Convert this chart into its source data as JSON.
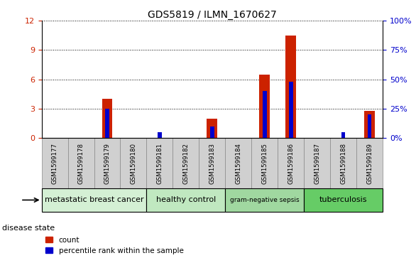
{
  "title": "GDS5819 / ILMN_1670627",
  "samples": [
    "GSM1599177",
    "GSM1599178",
    "GSM1599179",
    "GSM1599180",
    "GSM1599181",
    "GSM1599182",
    "GSM1599183",
    "GSM1599184",
    "GSM1599185",
    "GSM1599186",
    "GSM1599187",
    "GSM1599188",
    "GSM1599189"
  ],
  "counts": [
    0,
    0,
    4.0,
    0,
    0,
    0,
    2.0,
    0,
    6.5,
    10.5,
    0,
    0,
    2.8
  ],
  "percentile": [
    0,
    0,
    25,
    0,
    5,
    0,
    10,
    0,
    40,
    48,
    0,
    5,
    20
  ],
  "ylim_left": [
    0,
    12
  ],
  "ylim_right": [
    0,
    100
  ],
  "yticks_left": [
    0,
    3,
    6,
    9,
    12
  ],
  "yticks_right": [
    0,
    25,
    50,
    75,
    100
  ],
  "yticklabels_right": [
    "0%",
    "25%",
    "50%",
    "75%",
    "100%"
  ],
  "disease_groups": [
    {
      "label": "metastatic breast cancer",
      "start": 0,
      "end": 4,
      "color": "#d4f0d4"
    },
    {
      "label": "healthy control",
      "start": 4,
      "end": 7,
      "color": "#c0e8c0"
    },
    {
      "label": "gram-negative sepsis",
      "start": 7,
      "end": 10,
      "color": "#a0d8a0"
    },
    {
      "label": "tuberculosis",
      "start": 10,
      "end": 13,
      "color": "#66cc66"
    }
  ],
  "bar_color": "#cc2200",
  "percentile_color": "#0000cc",
  "bar_width": 0.4,
  "percentile_bar_width": 0.15,
  "tick_label_color_left": "#cc2200",
  "tick_label_color_right": "#0000cc",
  "legend_items": [
    "count",
    "percentile rank within the sample"
  ],
  "disease_label": "disease state",
  "sample_bg_color": "#d0d0d0"
}
